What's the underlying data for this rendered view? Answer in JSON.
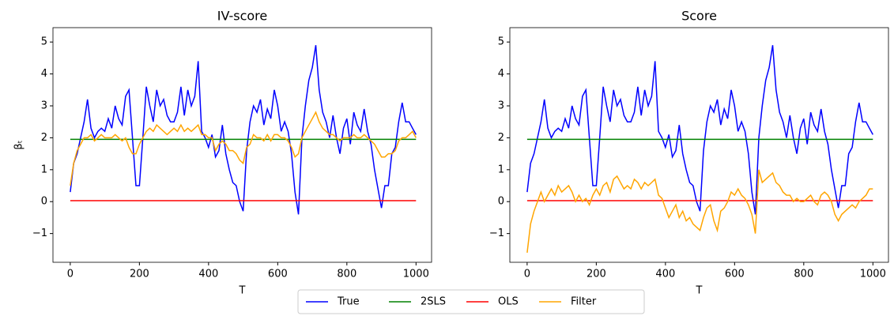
{
  "chart_data": [
    {
      "type": "line",
      "title": "IV-score",
      "xlabel": "T",
      "ylabel": "βₜ",
      "xlim": [
        -50,
        1045
      ],
      "ylim": [
        -1.9,
        5.45
      ],
      "xticks": [
        0,
        200,
        400,
        600,
        800,
        1000
      ],
      "yticks": [
        {
          "value": -1,
          "label": "−1"
        },
        0,
        1,
        2,
        3,
        4,
        5
      ],
      "x": [
        0,
        10,
        20,
        30,
        40,
        50,
        60,
        70,
        80,
        90,
        100,
        110,
        120,
        130,
        140,
        150,
        160,
        170,
        180,
        190,
        200,
        210,
        220,
        230,
        240,
        250,
        260,
        270,
        280,
        290,
        300,
        310,
        320,
        330,
        340,
        350,
        360,
        370,
        380,
        390,
        400,
        410,
        420,
        430,
        440,
        450,
        460,
        470,
        480,
        490,
        500,
        510,
        520,
        530,
        540,
        550,
        560,
        570,
        580,
        590,
        600,
        610,
        620,
        630,
        640,
        650,
        660,
        670,
        680,
        690,
        700,
        710,
        720,
        730,
        740,
        750,
        760,
        770,
        780,
        790,
        800,
        810,
        820,
        830,
        840,
        850,
        860,
        870,
        880,
        890,
        900,
        910,
        920,
        930,
        940,
        950,
        960,
        970,
        980,
        990,
        1000
      ],
      "series": [
        {
          "name": "True",
          "color": "#0000ff",
          "values": [
            0.3,
            1.2,
            1.5,
            2.0,
            2.5,
            3.2,
            2.3,
            2.0,
            2.2,
            2.3,
            2.2,
            2.6,
            2.3,
            3.0,
            2.6,
            2.4,
            3.3,
            3.5,
            2.0,
            0.5,
            0.5,
            2.0,
            3.6,
            3.0,
            2.5,
            3.5,
            3.0,
            3.2,
            2.7,
            2.5,
            2.5,
            2.8,
            3.6,
            2.7,
            3.5,
            3.0,
            3.3,
            4.4,
            2.2,
            2.0,
            1.7,
            2.1,
            1.4,
            1.6,
            2.4,
            1.5,
            1.0,
            0.6,
            0.5,
            0.0,
            -0.3,
            1.6,
            2.5,
            3.0,
            2.8,
            3.2,
            2.4,
            2.9,
            2.6,
            3.5,
            3.0,
            2.2,
            2.5,
            2.2,
            1.5,
            0.3,
            -0.4,
            2.0,
            3.0,
            3.8,
            4.2,
            4.9,
            3.5,
            2.8,
            2.5,
            2.0,
            2.7,
            2.0,
            1.5,
            2.3,
            2.6,
            1.8,
            2.8,
            2.4,
            2.2,
            2.9,
            2.2,
            1.8,
            1.0,
            0.4,
            -0.2,
            0.5,
            0.5,
            1.5,
            1.7,
            2.5,
            3.1,
            2.5,
            2.5,
            2.3,
            2.1
          ]
        },
        {
          "name": "2SLS",
          "color": "#008000",
          "x": [
            0,
            1000
          ],
          "values": [
            1.95,
            1.95
          ]
        },
        {
          "name": "OLS",
          "color": "#ff0000",
          "x": [
            0,
            1000
          ],
          "values": [
            0.03,
            0.03
          ]
        },
        {
          "name": "Filter",
          "color": "#ffa500",
          "values": [
            0.5,
            1.2,
            1.6,
            1.8,
            2.0,
            2.0,
            2.1,
            1.9,
            2.0,
            2.1,
            2.0,
            2.0,
            2.0,
            2.1,
            2.0,
            1.9,
            2.0,
            1.7,
            1.5,
            1.5,
            1.8,
            2.0,
            2.2,
            2.3,
            2.2,
            2.4,
            2.3,
            2.2,
            2.1,
            2.2,
            2.3,
            2.2,
            2.4,
            2.2,
            2.3,
            2.2,
            2.3,
            2.4,
            2.1,
            2.1,
            2.0,
            2.0,
            1.6,
            1.8,
            1.9,
            1.8,
            1.6,
            1.6,
            1.5,
            1.3,
            1.2,
            1.7,
            1.8,
            2.1,
            2.0,
            2.0,
            1.9,
            2.1,
            1.9,
            2.1,
            2.1,
            2.0,
            2.0,
            1.9,
            1.7,
            1.4,
            1.5,
            2.0,
            2.2,
            2.4,
            2.6,
            2.8,
            2.5,
            2.3,
            2.2,
            2.1,
            2.1,
            2.0,
            1.9,
            2.0,
            2.0,
            2.0,
            2.1,
            2.0,
            2.0,
            2.1,
            2.0,
            1.9,
            1.8,
            1.6,
            1.4,
            1.4,
            1.5,
            1.5,
            1.6,
            1.9,
            2.0,
            2.0,
            2.1,
            2.2,
            2.0
          ]
        }
      ]
    },
    {
      "type": "line",
      "title": "Score",
      "xlabel": "T",
      "xlim": [
        -50,
        1045
      ],
      "ylim": [
        -1.9,
        5.45
      ],
      "xticks": [
        0,
        200,
        400,
        600,
        800,
        1000
      ],
      "yticks": [
        {
          "value": -1,
          "label": "−1"
        },
        0,
        1,
        2,
        3,
        4,
        5
      ],
      "x": [
        0,
        10,
        20,
        30,
        40,
        50,
        60,
        70,
        80,
        90,
        100,
        110,
        120,
        130,
        140,
        150,
        160,
        170,
        180,
        190,
        200,
        210,
        220,
        230,
        240,
        250,
        260,
        270,
        280,
        290,
        300,
        310,
        320,
        330,
        340,
        350,
        360,
        370,
        380,
        390,
        400,
        410,
        420,
        430,
        440,
        450,
        460,
        470,
        480,
        490,
        500,
        510,
        520,
        530,
        540,
        550,
        560,
        570,
        580,
        590,
        600,
        610,
        620,
        630,
        640,
        650,
        660,
        670,
        680,
        690,
        700,
        710,
        720,
        730,
        740,
        750,
        760,
        770,
        780,
        790,
        800,
        810,
        820,
        830,
        840,
        850,
        860,
        870,
        880,
        890,
        900,
        910,
        920,
        930,
        940,
        950,
        960,
        970,
        980,
        990,
        1000
      ],
      "series": [
        {
          "name": "True",
          "color": "#0000ff",
          "values": [
            0.3,
            1.2,
            1.5,
            2.0,
            2.5,
            3.2,
            2.3,
            2.0,
            2.2,
            2.3,
            2.2,
            2.6,
            2.3,
            3.0,
            2.6,
            2.4,
            3.3,
            3.5,
            2.0,
            0.5,
            0.5,
            2.0,
            3.6,
            3.0,
            2.5,
            3.5,
            3.0,
            3.2,
            2.7,
            2.5,
            2.5,
            2.8,
            3.6,
            2.7,
            3.5,
            3.0,
            3.3,
            4.4,
            2.2,
            2.0,
            1.7,
            2.1,
            1.4,
            1.6,
            2.4,
            1.5,
            1.0,
            0.6,
            0.5,
            0.0,
            -0.3,
            1.6,
            2.5,
            3.0,
            2.8,
            3.2,
            2.4,
            2.9,
            2.6,
            3.5,
            3.0,
            2.2,
            2.5,
            2.2,
            1.5,
            0.3,
            -0.4,
            2.0,
            3.0,
            3.8,
            4.2,
            4.9,
            3.5,
            2.8,
            2.5,
            2.0,
            2.7,
            2.0,
            1.5,
            2.3,
            2.6,
            1.8,
            2.8,
            2.4,
            2.2,
            2.9,
            2.2,
            1.8,
            1.0,
            0.4,
            -0.2,
            0.5,
            0.5,
            1.5,
            1.7,
            2.5,
            3.1,
            2.5,
            2.5,
            2.3,
            2.1
          ]
        },
        {
          "name": "2SLS",
          "color": "#008000",
          "x": [
            0,
            1000
          ],
          "values": [
            1.95,
            1.95
          ]
        },
        {
          "name": "OLS",
          "color": "#ff0000",
          "x": [
            0,
            1000
          ],
          "values": [
            0.03,
            0.03
          ]
        },
        {
          "name": "Filter",
          "color": "#ffa500",
          "values": [
            -1.6,
            -0.7,
            -0.3,
            0.0,
            0.3,
            0.0,
            0.2,
            0.4,
            0.2,
            0.5,
            0.3,
            0.4,
            0.5,
            0.3,
            0.0,
            0.2,
            0.0,
            0.1,
            -0.1,
            0.2,
            0.4,
            0.2,
            0.5,
            0.6,
            0.3,
            0.7,
            0.8,
            0.6,
            0.4,
            0.5,
            0.4,
            0.7,
            0.6,
            0.4,
            0.6,
            0.5,
            0.6,
            0.7,
            0.2,
            0.1,
            -0.2,
            -0.5,
            -0.3,
            -0.1,
            -0.5,
            -0.3,
            -0.6,
            -0.5,
            -0.7,
            -0.8,
            -0.9,
            -0.5,
            -0.2,
            -0.1,
            -0.6,
            -0.9,
            -0.3,
            -0.2,
            0.0,
            0.3,
            0.2,
            0.4,
            0.2,
            0.1,
            -0.1,
            -0.4,
            -1.0,
            1.0,
            0.6,
            0.7,
            0.8,
            0.9,
            0.6,
            0.5,
            0.3,
            0.2,
            0.2,
            0.0,
            0.1,
            0.0,
            0.0,
            0.1,
            0.2,
            0.0,
            -0.1,
            0.2,
            0.3,
            0.2,
            0.0,
            -0.4,
            -0.6,
            -0.4,
            -0.3,
            -0.2,
            -0.1,
            -0.2,
            0.0,
            0.1,
            0.2,
            0.4,
            0.4
          ]
        }
      ]
    }
  ],
  "legend": "bottom"
}
